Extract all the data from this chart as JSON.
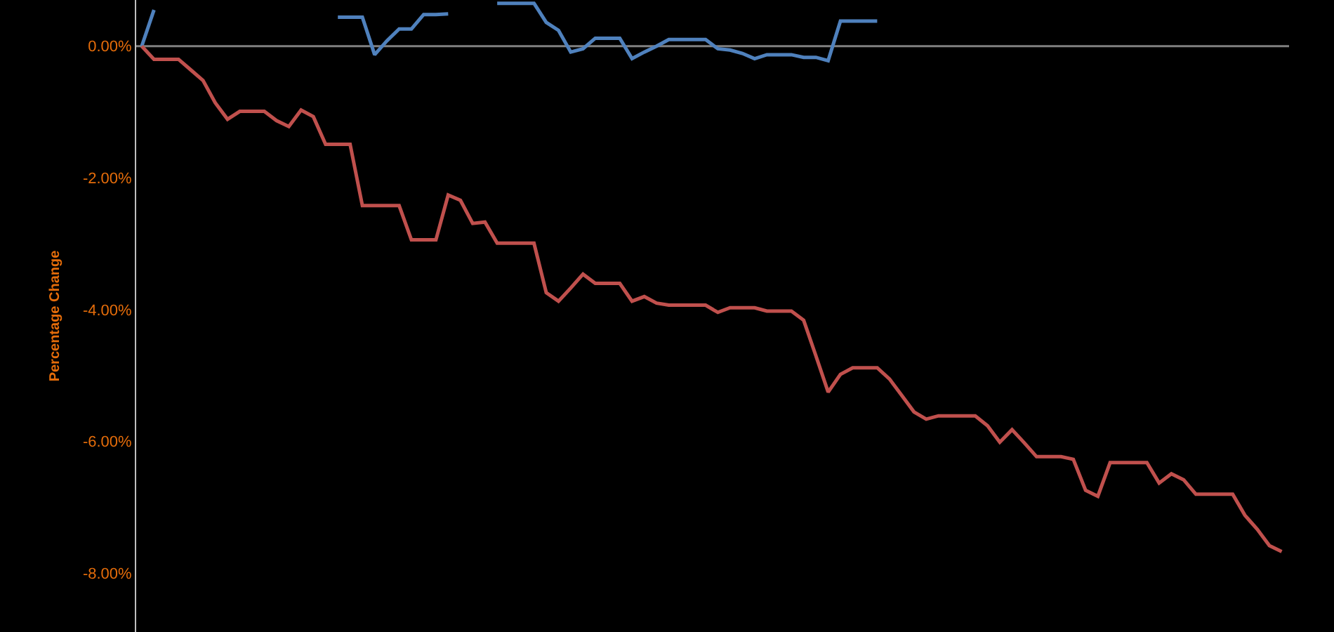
{
  "chart_data": {
    "type": "line",
    "ylabel": "Percentage Change",
    "categories": [
      null,
      null,
      null,
      null,
      null,
      null,
      null,
      null,
      null,
      null,
      null,
      null,
      null,
      null,
      null,
      null,
      null,
      null,
      null,
      null,
      null,
      null,
      null,
      null,
      null,
      null,
      null,
      null,
      null,
      null,
      null,
      null,
      null,
      null,
      null,
      null,
      null,
      null,
      null,
      null,
      null,
      null,
      null,
      null,
      null,
      null,
      null,
      null,
      null,
      null,
      null,
      null,
      null,
      null,
      null,
      null,
      null,
      null,
      null,
      null,
      null,
      null,
      null,
      null,
      null,
      null,
      null,
      null,
      null,
      null,
      null,
      null,
      null,
      null,
      null,
      null,
      null,
      null,
      null,
      null,
      null,
      null,
      null,
      null,
      null,
      null,
      null,
      null,
      null,
      null,
      null,
      null,
      null,
      null
    ],
    "series": [
      {
        "color": "#4f81bd",
        "values": [
          0,
          0.55,
          null,
          null,
          null,
          null,
          null,
          null,
          null,
          null,
          null,
          null,
          null,
          null,
          null,
          null,
          0.44,
          0.44,
          0.44,
          -0.13,
          0.08,
          0.26,
          0.26,
          0.48,
          0.48,
          0.49,
          null,
          null,
          null,
          0.65,
          0.65,
          0.65,
          0.65,
          0.36,
          0.24,
          -0.09,
          -0.04,
          0.12,
          0.12,
          0.12,
          -0.19,
          -0.09,
          0,
          0.1,
          0.1,
          0.1,
          0.1,
          -0.04,
          -0.06,
          -0.11,
          -0.19,
          -0.13,
          -0.13,
          -0.13,
          -0.17,
          -0.17,
          -0.22,
          0.38,
          0.38,
          0.38,
          0.38,
          null,
          null,
          null,
          null,
          null,
          null,
          null,
          null,
          null,
          null,
          null,
          null,
          null,
          null,
          null,
          null,
          null,
          null,
          null,
          null,
          null,
          null,
          null,
          null,
          null,
          null,
          null,
          null,
          null,
          null,
          null,
          null,
          null
        ]
      },
      {
        "color": "#c0504d",
        "values": [
          0,
          -0.2,
          -0.2,
          -0.2,
          -0.36,
          -0.52,
          -0.86,
          -1.11,
          -0.99,
          -0.99,
          -0.99,
          -1.13,
          -1.22,
          -0.97,
          -1.07,
          -1.49,
          -1.49,
          -1.49,
          -2.42,
          -2.42,
          -2.42,
          -2.42,
          -2.94,
          -2.94,
          -2.94,
          -2.26,
          -2.34,
          -2.69,
          -2.67,
          -2.99,
          -2.99,
          -2.99,
          -2.99,
          -3.74,
          -3.87,
          -3.67,
          -3.46,
          -3.6,
          -3.6,
          -3.6,
          -3.87,
          -3.8,
          -3.9,
          -3.93,
          -3.93,
          -3.93,
          -3.93,
          -4.04,
          -3.97,
          -3.97,
          -3.97,
          -4.02,
          -4.02,
          -4.02,
          -4.16,
          -4.7,
          -5.25,
          -4.98,
          -4.88,
          -4.88,
          -4.88,
          -5.05,
          -5.3,
          -5.55,
          -5.66,
          -5.61,
          -5.61,
          -5.61,
          -5.61,
          -5.76,
          -6.01,
          -5.82,
          -6.02,
          -6.23,
          -6.23,
          -6.23,
          -6.27,
          -6.74,
          -6.83,
          -6.32,
          -6.32,
          -6.32,
          -6.32,
          -6.63,
          -6.49,
          -6.58,
          -6.8,
          -6.8,
          -6.8,
          -6.8,
          -7.12,
          -7.33,
          -7.58,
          -7.67
        ]
      }
    ],
    "ylim": [
      -8.89,
      0.7
    ],
    "yticks": [
      {
        "value": 0,
        "label": "0.00%"
      },
      {
        "value": -2,
        "label": "-2.00%"
      },
      {
        "value": -4,
        "label": "-4.00%"
      },
      {
        "value": -6,
        "label": "-6.00%"
      },
      {
        "value": -8,
        "label": "-8.00%"
      }
    ],
    "ref_lines": [
      {
        "axis": "y",
        "value": 0,
        "color": "#808080"
      }
    ],
    "grid": false,
    "tick_labels": "y",
    "marker": "none",
    "line_style": "solid"
  }
}
